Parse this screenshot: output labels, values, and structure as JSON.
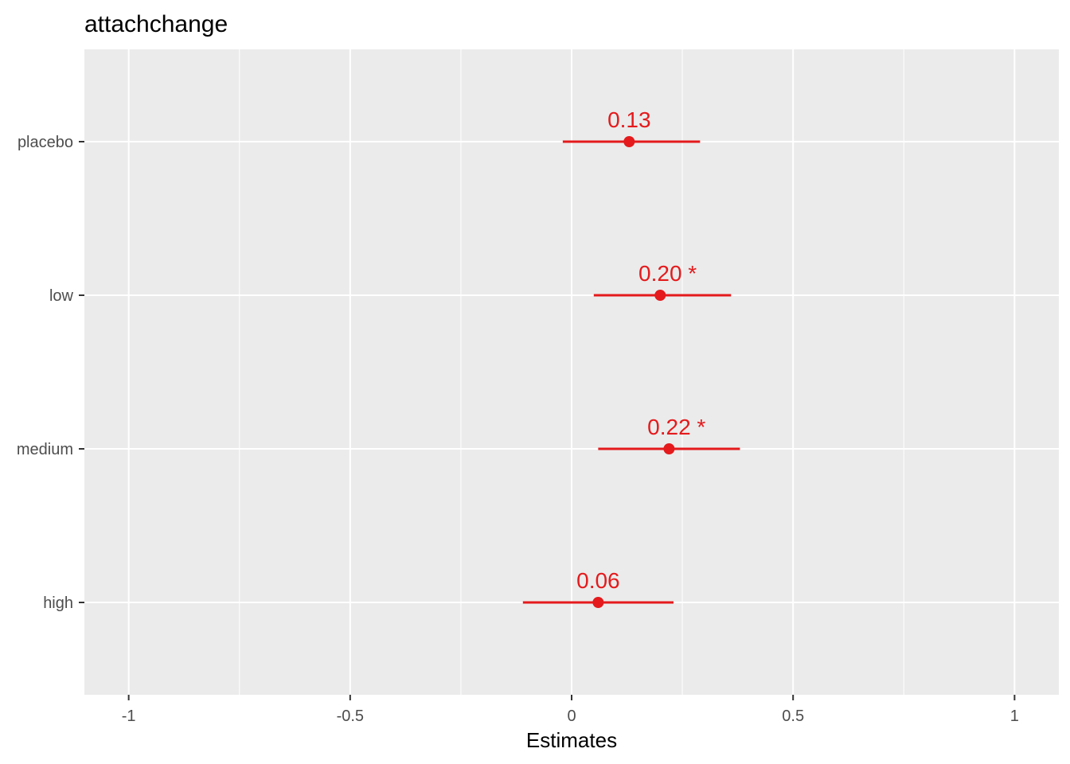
{
  "chart_data": {
    "type": "forest",
    "title": "attachchange",
    "xlabel": "Estimates",
    "ylabel": "",
    "xlim": [
      -1.1,
      1.1
    ],
    "x_ticks": [
      -1,
      -0.5,
      0,
      0.5,
      1
    ],
    "x_tick_labels": [
      "-1",
      "-0.5",
      "0",
      "0.5",
      "1"
    ],
    "x_minor_ticks": [
      -0.75,
      -0.25,
      0.25,
      0.75
    ],
    "categories": [
      "placebo",
      "low",
      "medium",
      "high"
    ],
    "estimates": [
      0.13,
      0.2,
      0.22,
      0.06
    ],
    "ci_low": [
      -0.02,
      0.05,
      0.06,
      -0.11
    ],
    "ci_high": [
      0.29,
      0.36,
      0.38,
      0.23
    ],
    "labels": [
      "0.13",
      "0.20 *",
      "0.22 *",
      "0.06"
    ],
    "grid": true,
    "legend": "none",
    "colors": {
      "point": "#e41a1c",
      "panel_background": "#ebebeb",
      "grid": "#ffffff"
    }
  }
}
